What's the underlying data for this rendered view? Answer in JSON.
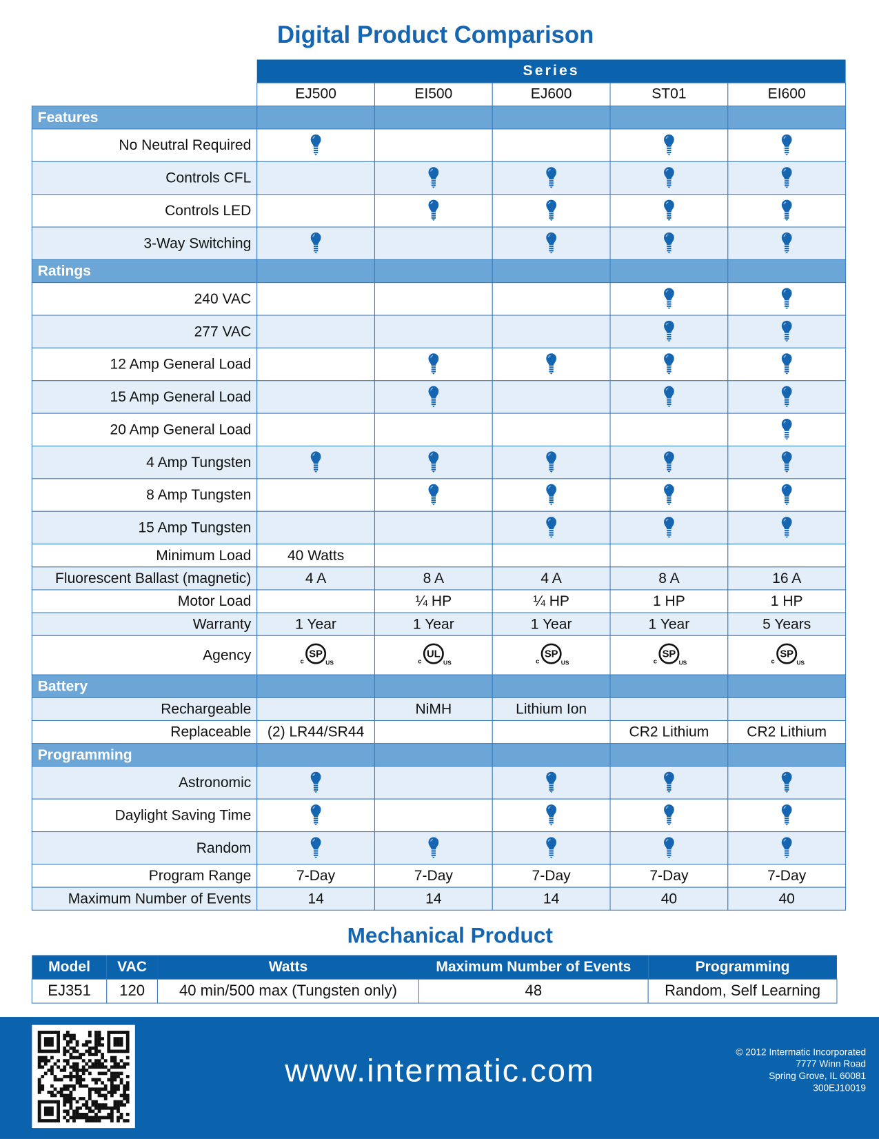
{
  "title": "Digital Product Comparison",
  "comparison": {
    "group_label": "Series",
    "columns": [
      "EJ500",
      "EI500",
      "EJ600",
      "ST01",
      "EI600"
    ],
    "sections": [
      {
        "name": "Features",
        "rows": [
          {
            "label": "No Neutral Required",
            "cells": [
              true,
              null,
              null,
              true,
              true
            ]
          },
          {
            "label": "Controls CFL",
            "cells": [
              null,
              true,
              true,
              true,
              true
            ]
          },
          {
            "label": "Controls LED",
            "cells": [
              null,
              true,
              true,
              true,
              true
            ]
          },
          {
            "label": "3-Way Switching",
            "cells": [
              true,
              null,
              true,
              true,
              true
            ]
          }
        ]
      },
      {
        "name": "Ratings",
        "rows": [
          {
            "label": "240 VAC",
            "cells": [
              null,
              null,
              null,
              true,
              true
            ]
          },
          {
            "label": "277 VAC",
            "cells": [
              null,
              null,
              null,
              true,
              true
            ]
          },
          {
            "label": "12 Amp General Load",
            "cells": [
              null,
              true,
              true,
              true,
              true
            ]
          },
          {
            "label": "15 Amp General Load",
            "cells": [
              null,
              true,
              null,
              true,
              true
            ]
          },
          {
            "label": "20 Amp General Load",
            "cells": [
              null,
              null,
              null,
              null,
              true
            ]
          },
          {
            "label": "4 Amp Tungsten",
            "cells": [
              true,
              true,
              true,
              true,
              true
            ]
          },
          {
            "label": "8 Amp Tungsten",
            "cells": [
              null,
              true,
              true,
              true,
              true
            ]
          },
          {
            "label": "15 Amp Tungsten",
            "cells": [
              null,
              null,
              true,
              true,
              true
            ]
          },
          {
            "label": "Minimum Load",
            "cells": [
              "40 Watts",
              null,
              null,
              null,
              null
            ]
          },
          {
            "label": "Fluorescent Ballast (magnetic)",
            "cells": [
              "4 A",
              "8 A",
              "4 A",
              "8 A",
              "16 A"
            ]
          },
          {
            "label": "Motor Load",
            "cells": [
              null,
              "¼ HP",
              "¼ HP",
              "1 HP",
              "1 HP"
            ]
          },
          {
            "label": "Warranty",
            "cells": [
              "1 Year",
              "1 Year",
              "1 Year",
              "1 Year",
              "5 Years"
            ]
          },
          {
            "label": "Agency",
            "cells": [
              {
                "prefix": "c",
                "mark": "SP",
                "suffix": "US"
              },
              {
                "prefix": "c",
                "mark": "UL",
                "suffix": "US"
              },
              {
                "prefix": "c",
                "mark": "SP",
                "suffix": "US"
              },
              {
                "prefix": "c",
                "mark": "SP",
                "suffix": "US"
              },
              {
                "prefix": "c",
                "mark": "SP",
                "suffix": "US"
              }
            ]
          }
        ]
      },
      {
        "name": "Battery",
        "rows": [
          {
            "label": "Rechargeable",
            "cells": [
              null,
              "NiMH",
              "Lithium Ion",
              null,
              null
            ]
          },
          {
            "label": "Replaceable",
            "cells": [
              "(2) LR44/SR44",
              null,
              null,
              "CR2 Lithium",
              "CR2 Lithium"
            ]
          }
        ]
      },
      {
        "name": "Programming",
        "rows": [
          {
            "label": "Astronomic",
            "cells": [
              true,
              null,
              true,
              true,
              true
            ]
          },
          {
            "label": "Daylight Saving Time",
            "cells": [
              true,
              null,
              true,
              true,
              true
            ]
          },
          {
            "label": "Random",
            "cells": [
              true,
              true,
              true,
              true,
              true
            ]
          },
          {
            "label": "Program Range",
            "cells": [
              "7-Day",
              "7-Day",
              "7-Day",
              "7-Day",
              "7-Day"
            ]
          },
          {
            "label": "Maximum Number of Events",
            "cells": [
              14,
              14,
              14,
              40,
              40
            ]
          }
        ]
      }
    ]
  },
  "mechanical": {
    "title": "Mechanical Product",
    "headers": [
      "Model",
      "VAC",
      "Watts",
      "Maximum Number of Events",
      "Programming"
    ],
    "rows": [
      [
        "EJ351",
        120,
        "40 min/500 max (Tungsten only)",
        48,
        "Random, Self Learning"
      ]
    ]
  },
  "footer": {
    "url": "www.intermatic.com",
    "address": [
      "© 2012 Intermatic Incorporated",
      "7777 Winn Road",
      "Spring Grove, IL 60081",
      "300EJ10019"
    ]
  }
}
